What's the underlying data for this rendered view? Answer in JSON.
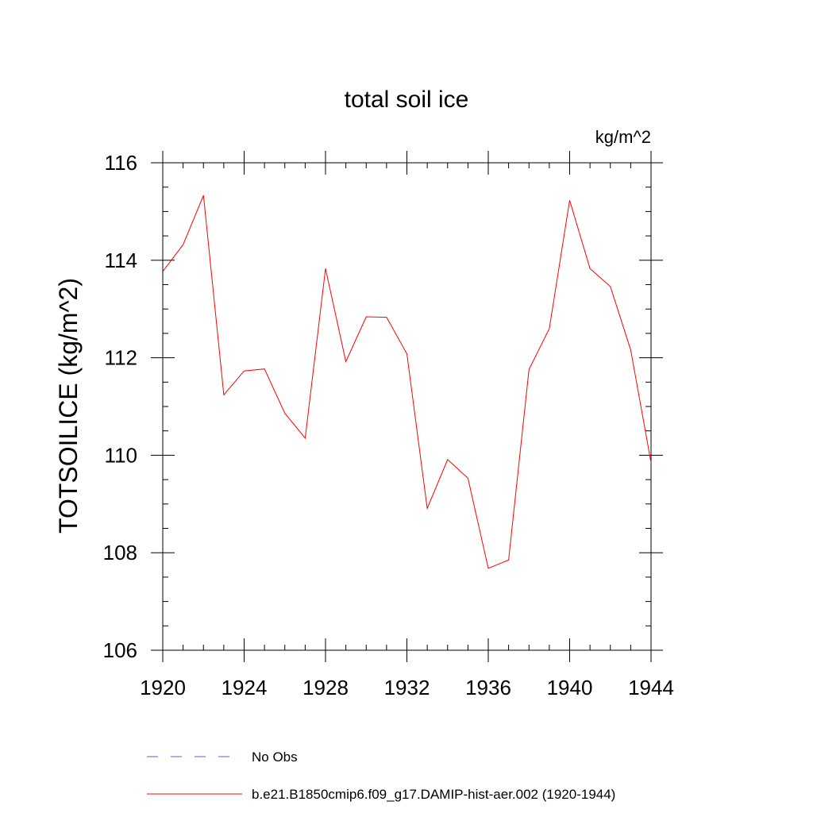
{
  "chart_data": {
    "type": "line",
    "title": "total soil ice",
    "units": "kg/m^2",
    "ylabel": "TOTSOILICE  (kg/m^2)",
    "xlabel": "",
    "xlim": [
      1920,
      1944
    ],
    "ylim": [
      106,
      116
    ],
    "xticks": [
      "1920",
      "1924",
      "1928",
      "1932",
      "1936",
      "1940",
      "1944"
    ],
    "yticks": [
      "106",
      "108",
      "110",
      "112",
      "114",
      "116"
    ],
    "grid": false,
    "series": [
      {
        "name": "b.e21.B1850cmip6.f09_g17.DAMIP-hist-aer.002 (1920-1944)",
        "color": "#ff0000",
        "x": [
          1920,
          1921,
          1922,
          1923,
          1924,
          1925,
          1926,
          1927,
          1928,
          1929,
          1930,
          1931,
          1932,
          1933,
          1934,
          1935,
          1936,
          1937,
          1938,
          1939,
          1940,
          1941,
          1942,
          1943,
          1944
        ],
        "values": [
          113.77,
          114.32,
          115.33,
          111.24,
          111.73,
          111.77,
          110.86,
          110.35,
          113.83,
          111.92,
          112.84,
          112.83,
          112.08,
          108.91,
          109.91,
          109.53,
          107.68,
          107.85,
          111.76,
          112.6,
          115.23,
          113.83,
          113.46,
          112.16,
          109.85
        ]
      },
      {
        "name": "No Obs",
        "color": "#6a5acd",
        "dashed": true,
        "x": [],
        "values": []
      }
    ],
    "legend_position": "bottom"
  }
}
